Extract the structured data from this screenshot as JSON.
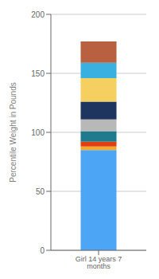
{
  "chart_data": {
    "type": "bar",
    "stacked": true,
    "categories": [
      "Girl 14 years 7 months"
    ],
    "ylabel": "Percentile Weight in Pounds",
    "series": [
      {
        "color": "#4da6f5",
        "values": [
          85
        ]
      },
      {
        "color": "#f0a830",
        "values": [
          3
        ]
      },
      {
        "color": "#e04010",
        "values": [
          4
        ]
      },
      {
        "color": "#1e7a8c",
        "values": [
          9
        ]
      },
      {
        "color": "#b8b8b8",
        "values": [
          10
        ]
      },
      {
        "color": "#1e3560",
        "values": [
          15
        ]
      },
      {
        "color": "#f5d060",
        "values": [
          20
        ]
      },
      {
        "color": "#3ab0e0",
        "values": [
          13
        ]
      },
      {
        "color": "#b86040",
        "values": [
          18
        ]
      }
    ],
    "ylim": [
      0,
      200
    ],
    "yticks": [
      0,
      50,
      100,
      150,
      200
    ],
    "grid": true
  }
}
